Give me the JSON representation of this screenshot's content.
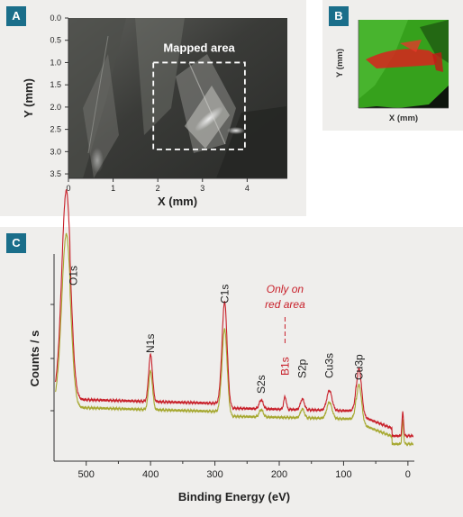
{
  "panels": [
    {
      "badge": "A"
    },
    {
      "badge": "B"
    },
    {
      "badge": "C"
    }
  ],
  "chart_data": [
    {
      "type": "image",
      "panel": "A",
      "xlabel": "X (mm)",
      "ylabel": "Y (mm)",
      "x_ticks": [
        "0",
        "1",
        "2",
        "3",
        "4"
      ],
      "y_ticks": [
        "0.0",
        "0.5",
        "1.0",
        "1.5",
        "2.0",
        "2.5",
        "3.0",
        "3.5"
      ],
      "xlim": [
        0,
        4.9
      ],
      "ylim": [
        0,
        3.6
      ],
      "annotation": {
        "text": "Mapped area",
        "x_range": [
          1.9,
          3.95
        ],
        "y_range": [
          1.0,
          2.95
        ]
      }
    },
    {
      "type": "heatmap",
      "panel": "B",
      "xlabel": "X (mm)",
      "ylabel": "Y (mm)",
      "colors": {
        "base": "#38a81e",
        "highlight": "#e02020",
        "background": "#101810"
      }
    },
    {
      "type": "line",
      "panel": "C",
      "xlabel": "Binding Energy (eV)",
      "ylabel": "Counts / s",
      "x_ticks": [
        500,
        400,
        300,
        200,
        100,
        0
      ],
      "xlim": [
        550,
        -10
      ],
      "x_reversed": true,
      "grid": false,
      "series": [
        {
          "color": "#c8202a"
        },
        {
          "color": "#a6a830"
        }
      ],
      "peaks": [
        {
          "label": "O1s",
          "x": 531,
          "red": true
        },
        {
          "label": "N1s",
          "x": 400,
          "red": false
        },
        {
          "label": "C1s",
          "x": 285,
          "red": false
        },
        {
          "label": "S2s",
          "x": 228,
          "red": false
        },
        {
          "label": "B1s",
          "x": 191,
          "red": true
        },
        {
          "label": "S2p",
          "x": 164,
          "red": false
        },
        {
          "label": "Cu3s",
          "x": 122,
          "red": false
        },
        {
          "label": "Cu3p",
          "x": 76,
          "red": false
        }
      ],
      "annotation": {
        "line1": "Only on",
        "line2": "red area",
        "x": 191
      }
    }
  ]
}
